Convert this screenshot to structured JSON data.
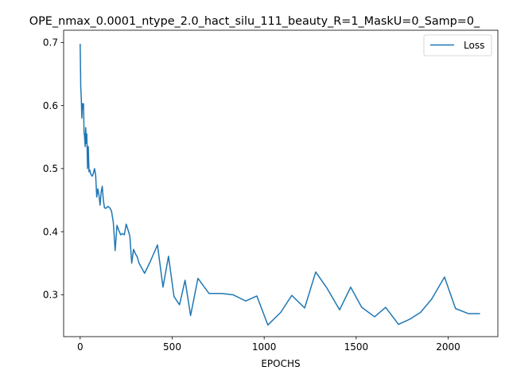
{
  "chart_data": {
    "type": "line",
    "title": "OPE_nmax_0.0001_ntype_2.0_hact_silu_111_beauty_R=1_MaskU=0_Samp=0_",
    "xlabel": "EPOCHS",
    "ylabel": "",
    "xlim": [
      -90,
      2270
    ],
    "ylim": [
      0.2335,
      0.7195
    ],
    "xticks": [
      0,
      500,
      1000,
      1500,
      2000
    ],
    "yticks": [
      0.3,
      0.4,
      0.5,
      0.6,
      0.7
    ],
    "xtick_labels": [
      "0",
      "500",
      "1000",
      "1500",
      "2000"
    ],
    "ytick_labels": [
      "0.3",
      "0.4",
      "0.5",
      "0.6",
      "0.7"
    ],
    "grid": false,
    "legend_position": "top-right",
    "series": [
      {
        "name": "Loss",
        "color": "#1f77b4",
        "x": [
          0,
          3,
          6,
          9,
          12,
          15,
          18,
          21,
          24,
          27,
          30,
          33,
          36,
          40,
          44,
          48,
          52,
          56,
          60,
          66,
          72,
          78,
          84,
          90,
          96,
          102,
          108,
          114,
          120,
          126,
          132,
          140,
          150,
          160,
          170,
          180,
          190,
          200,
          210,
          220,
          230,
          240,
          250,
          260,
          270,
          280,
          290,
          300,
          310,
          320,
          350,
          380,
          420,
          450,
          480,
          510,
          540,
          570,
          600,
          640,
          700,
          770,
          830,
          900,
          960,
          1020,
          1090,
          1150,
          1220,
          1280,
          1340,
          1410,
          1470,
          1530,
          1600,
          1660,
          1730,
          1790,
          1850,
          1910,
          1980,
          2040,
          2110,
          2170
        ],
        "values": [
          0.697,
          0.63,
          0.612,
          0.58,
          0.603,
          0.595,
          0.603,
          0.558,
          0.55,
          0.535,
          0.565,
          0.54,
          0.555,
          0.5,
          0.535,
          0.495,
          0.498,
          0.493,
          0.49,
          0.488,
          0.493,
          0.5,
          0.49,
          0.455,
          0.468,
          0.458,
          0.442,
          0.463,
          0.472,
          0.45,
          0.438,
          0.437,
          0.44,
          0.438,
          0.433,
          0.415,
          0.37,
          0.41,
          0.402,
          0.395,
          0.397,
          0.395,
          0.412,
          0.403,
          0.393,
          0.35,
          0.372,
          0.365,
          0.36,
          0.35,
          0.334,
          0.352,
          0.379,
          0.312,
          0.361,
          0.297,
          0.284,
          0.323,
          0.267,
          0.326,
          0.302,
          0.302,
          0.3,
          0.29,
          0.298,
          0.252,
          0.272,
          0.299,
          0.279,
          0.336,
          0.311,
          0.276,
          0.312,
          0.28,
          0.265,
          0.28,
          0.253,
          0.261,
          0.272,
          0.293,
          0.328,
          0.278,
          0.27,
          0.27
        ]
      }
    ]
  }
}
